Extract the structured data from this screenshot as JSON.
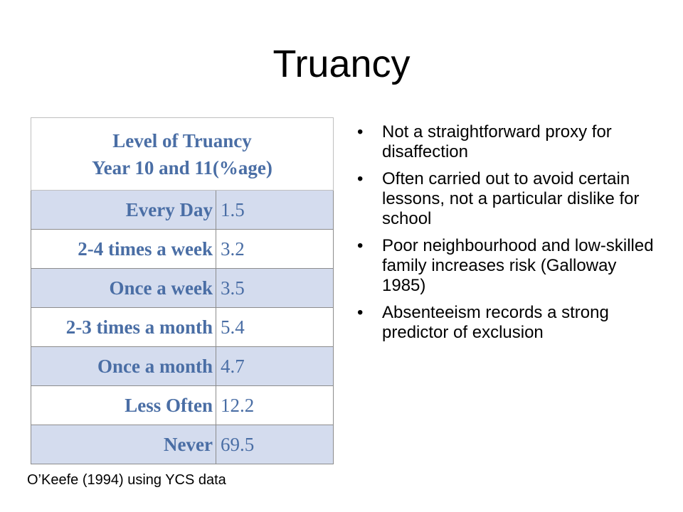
{
  "slide": {
    "title": "Truancy"
  },
  "table": {
    "header_line1": "Level of Truancy",
    "header_line2": "Year 10 and 11(%age)",
    "rows": [
      {
        "label": "Every Day",
        "value": "1.5"
      },
      {
        "label": "2-4 times a week",
        "value": "3.2"
      },
      {
        "label": "Once a week",
        "value": "3.5"
      },
      {
        "label": "2-3 times a month",
        "value": "5.4"
      },
      {
        "label": "Once a month",
        "value": "4.7"
      },
      {
        "label": "Less Often",
        "value": "12.2"
      },
      {
        "label": "Never",
        "value": "69.5"
      }
    ]
  },
  "source_note": "O’Keefe (1994) using YCS data",
  "bullets": {
    "items": [
      "Not a straightforward proxy for disaffection",
      "Often carried out to avoid certain lessons, not a particular dislike for school",
      "Poor neighbourhood and low-skilled family increases risk (Galloway 1985)",
      "Absenteeism records a strong predictor of exclusion"
    ]
  },
  "colors": {
    "table_text": "#4a6ea5",
    "row_shade": "#d4dcee"
  }
}
